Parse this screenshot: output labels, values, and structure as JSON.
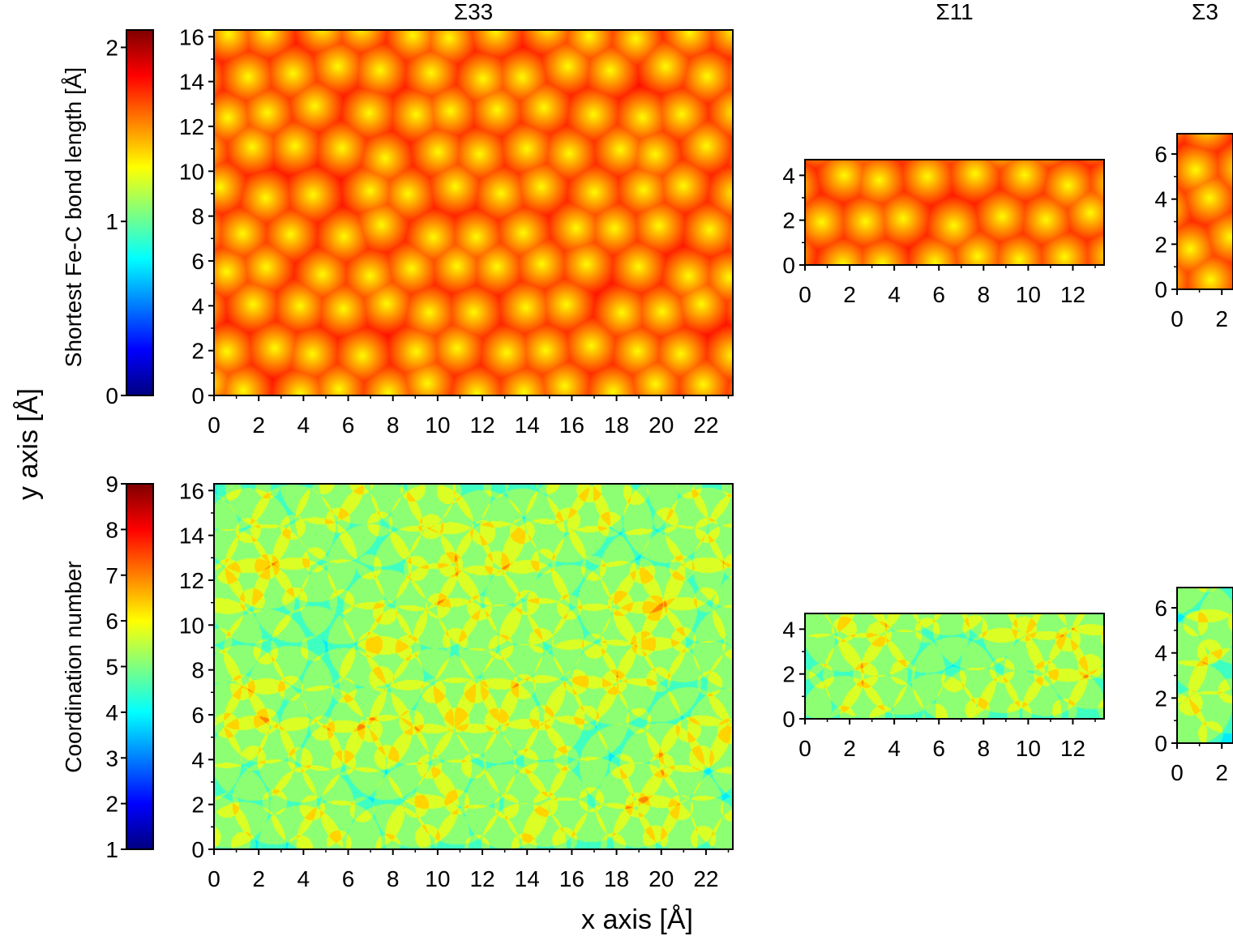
{
  "figure": {
    "ylabel": "y axis [Å]",
    "xlabel": "x axis [Å]"
  },
  "colorbars": [
    {
      "label": "Shortest Fe-C bond length [Å]",
      "range": [
        0,
        2.1
      ],
      "ticks": [
        "0",
        "1",
        "2"
      ],
      "tick_values": [
        0,
        1,
        2
      ]
    },
    {
      "label": "Coordination number",
      "range": [
        1,
        9
      ],
      "ticks": [
        "1",
        "2",
        "3",
        "4",
        "5",
        "6",
        "7",
        "8",
        "9"
      ],
      "tick_values": [
        1,
        2,
        3,
        4,
        5,
        6,
        7,
        8,
        9
      ]
    }
  ],
  "colormap": "jet",
  "colors": {
    "frame": "#000000",
    "background": "#ffffff"
  },
  "chart_data": [
    {
      "type": "heatmap",
      "title": "Σ33",
      "quantity": "bond",
      "xlim": [
        0,
        23.2
      ],
      "ylim": [
        0,
        16.3
      ],
      "xticks": [
        "0",
        "2",
        "4",
        "6",
        "8",
        "10",
        "12",
        "14",
        "16",
        "18",
        "20",
        "22"
      ],
      "yticks": [
        "0",
        "2",
        "4",
        "6",
        "8",
        "10",
        "12",
        "14",
        "16"
      ],
      "value_range": [
        0,
        2.1
      ],
      "grid": false
    },
    {
      "type": "heatmap",
      "title": "Σ11",
      "quantity": "bond",
      "xlim": [
        0,
        13.4
      ],
      "ylim": [
        0,
        4.7
      ],
      "xticks": [
        "0",
        "2",
        "4",
        "6",
        "8",
        "10",
        "12"
      ],
      "yticks": [
        "0",
        "2",
        "4"
      ],
      "value_range": [
        0,
        2.1
      ],
      "grid": false
    },
    {
      "type": "heatmap",
      "title": "Σ3",
      "quantity": "bond",
      "xlim": [
        0,
        2.5
      ],
      "ylim": [
        0,
        6.9
      ],
      "xticks": [
        "0",
        "2"
      ],
      "yticks": [
        "0",
        "2",
        "4",
        "6"
      ],
      "value_range": [
        0,
        2.1
      ],
      "grid": false
    },
    {
      "type": "heatmap",
      "title": "",
      "quantity": "coord",
      "xlim": [
        0,
        23.2
      ],
      "ylim": [
        0,
        16.3
      ],
      "xticks": [
        "0",
        "2",
        "4",
        "6",
        "8",
        "10",
        "12",
        "14",
        "16",
        "18",
        "20",
        "22"
      ],
      "yticks": [
        "0",
        "2",
        "4",
        "6",
        "8",
        "10",
        "12",
        "14",
        "16"
      ],
      "value_range": [
        1,
        9
      ],
      "grid": false
    },
    {
      "type": "heatmap",
      "title": "",
      "quantity": "coord",
      "xlim": [
        0,
        13.4
      ],
      "ylim": [
        0,
        4.7
      ],
      "xticks": [
        "0",
        "2",
        "4",
        "6",
        "8",
        "10",
        "12"
      ],
      "yticks": [
        "0",
        "2",
        "4"
      ],
      "value_range": [
        1,
        9
      ],
      "grid": false
    },
    {
      "type": "heatmap",
      "title": "",
      "quantity": "coord",
      "xlim": [
        0,
        2.5
      ],
      "ylim": [
        0,
        6.9
      ],
      "xticks": [
        "0",
        "2"
      ],
      "yticks": [
        "0",
        "2",
        "4",
        "6"
      ],
      "value_range": [
        1,
        9
      ],
      "grid": false
    }
  ]
}
